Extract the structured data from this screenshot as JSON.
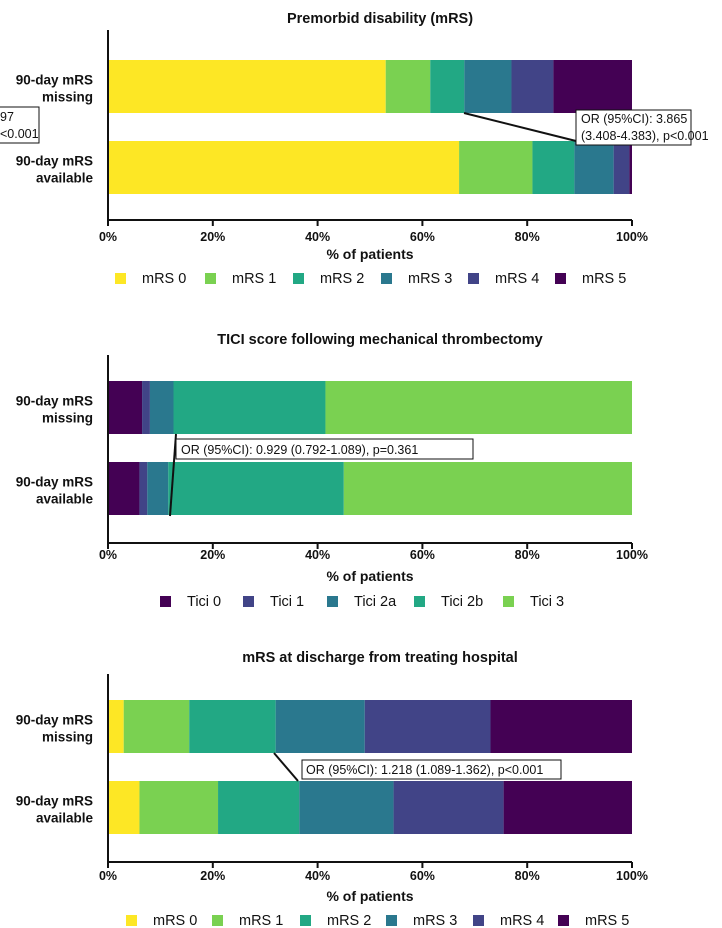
{
  "figure": {
    "side_fragment": [
      "97",
      "<0.001"
    ]
  },
  "charts": [
    {
      "title": "Premorbid disability (mRS)",
      "categories": [
        "90-day mRS missing",
        "90-day mRS available"
      ],
      "category_lines": [
        [
          "90-day mRS",
          "missing"
        ],
        [
          "90-day mRS",
          "available"
        ]
      ],
      "xlabel": "% of patients",
      "xticks": [
        "0%",
        "20%",
        "40%",
        "60%",
        "80%",
        "100%"
      ],
      "legend_position": "bottom",
      "annotation": [
        "OR (95%CI): 3.865",
        "(3.408-4.383), p<0.001"
      ],
      "series": [
        {
          "name": "mRS 0",
          "color": "#fde725"
        },
        {
          "name": "mRS 1",
          "color": "#7ad151"
        },
        {
          "name": "mRS 2",
          "color": "#22a884"
        },
        {
          "name": "mRS 3",
          "color": "#2a788e"
        },
        {
          "name": "mRS 4",
          "color": "#414487"
        },
        {
          "name": "mRS 5",
          "color": "#440154"
        }
      ]
    },
    {
      "title": "TICI score following mechanical thrombectomy",
      "categories": [
        "90-day mRS missing",
        "90-day mRS available"
      ],
      "category_lines": [
        [
          "90-day mRS",
          "missing"
        ],
        [
          "90-day mRS",
          "available"
        ]
      ],
      "xlabel": "% of patients",
      "xticks": [
        "0%",
        "20%",
        "40%",
        "60%",
        "80%",
        "100%"
      ],
      "legend_position": "bottom",
      "annotation": [
        "OR (95%CI): 0.929 (0.792-1.089), p=0.361"
      ],
      "series": [
        {
          "name": "Tici 0",
          "color": "#440154"
        },
        {
          "name": "Tici 1",
          "color": "#414487"
        },
        {
          "name": "Tici 2a",
          "color": "#2a788e"
        },
        {
          "name": "Tici 2b",
          "color": "#22a884"
        },
        {
          "name": "Tici 3",
          "color": "#7ad151"
        }
      ]
    },
    {
      "title": "mRS at discharge from treating hospital",
      "categories": [
        "90-day mRS missing",
        "90-day mRS available"
      ],
      "category_lines": [
        [
          "90-day mRS",
          "missing"
        ],
        [
          "90-day mRS",
          "available"
        ]
      ],
      "xlabel": "% of patients",
      "xticks": [
        "0%",
        "20%",
        "40%",
        "60%",
        "80%",
        "100%"
      ],
      "legend_position": "bottom",
      "annotation": [
        "OR (95%CI): 1.218 (1.089-1.362), p<0.001"
      ],
      "series": [
        {
          "name": "mRS 0",
          "color": "#fde725"
        },
        {
          "name": "mRS 1",
          "color": "#7ad151"
        },
        {
          "name": "mRS 2",
          "color": "#22a884"
        },
        {
          "name": "mRS 3",
          "color": "#2a788e"
        },
        {
          "name": "mRS 4",
          "color": "#414487"
        },
        {
          "name": "mRS 5",
          "color": "#440154"
        }
      ]
    }
  ],
  "chart_data": [
    {
      "type": "bar",
      "stacked": true,
      "orientation": "horizontal",
      "title": "Premorbid disability (mRS)",
      "categories": [
        "90-day mRS missing",
        "90-day mRS available"
      ],
      "xlabel": "% of patients",
      "ylabel": "",
      "xlim": [
        0,
        100
      ],
      "series": [
        {
          "name": "mRS 0",
          "values": [
            53,
            67
          ]
        },
        {
          "name": "mRS 1",
          "values": [
            8.5,
            14
          ]
        },
        {
          "name": "mRS 2",
          "values": [
            6.5,
            8
          ]
        },
        {
          "name": "mRS 3",
          "values": [
            9,
            7.5
          ]
        },
        {
          "name": "mRS 4",
          "values": [
            8,
            3
          ]
        },
        {
          "name": "mRS 5",
          "values": [
            15,
            0.5
          ]
        }
      ]
    },
    {
      "type": "bar",
      "stacked": true,
      "orientation": "horizontal",
      "title": "TICI score following mechanical thrombectomy",
      "categories": [
        "90-day mRS missing",
        "90-day mRS available"
      ],
      "xlabel": "% of patients",
      "ylabel": "",
      "xlim": [
        0,
        100
      ],
      "series": [
        {
          "name": "Tici 0",
          "values": [
            6.5,
            6
          ]
        },
        {
          "name": "Tici 1",
          "values": [
            1.5,
            1.5
          ]
        },
        {
          "name": "Tici 2a",
          "values": [
            4.5,
            4
          ]
        },
        {
          "name": "Tici 2b",
          "values": [
            29,
            33.5
          ]
        },
        {
          "name": "Tici 3",
          "values": [
            58.5,
            55
          ]
        }
      ]
    },
    {
      "type": "bar",
      "stacked": true,
      "orientation": "horizontal",
      "title": "mRS at discharge from treating hospital",
      "categories": [
        "90-day mRS missing",
        "90-day mRS available"
      ],
      "xlabel": "% of patients",
      "ylabel": "",
      "xlim": [
        0,
        100
      ],
      "series": [
        {
          "name": "mRS 0",
          "values": [
            3,
            6
          ]
        },
        {
          "name": "mRS 1",
          "values": [
            12.5,
            15
          ]
        },
        {
          "name": "mRS 2",
          "values": [
            16.5,
            15.5
          ]
        },
        {
          "name": "mRS 3",
          "values": [
            17,
            18
          ]
        },
        {
          "name": "mRS 4",
          "values": [
            24,
            21
          ]
        },
        {
          "name": "mRS 5",
          "values": [
            27,
            24.5
          ]
        }
      ]
    }
  ]
}
